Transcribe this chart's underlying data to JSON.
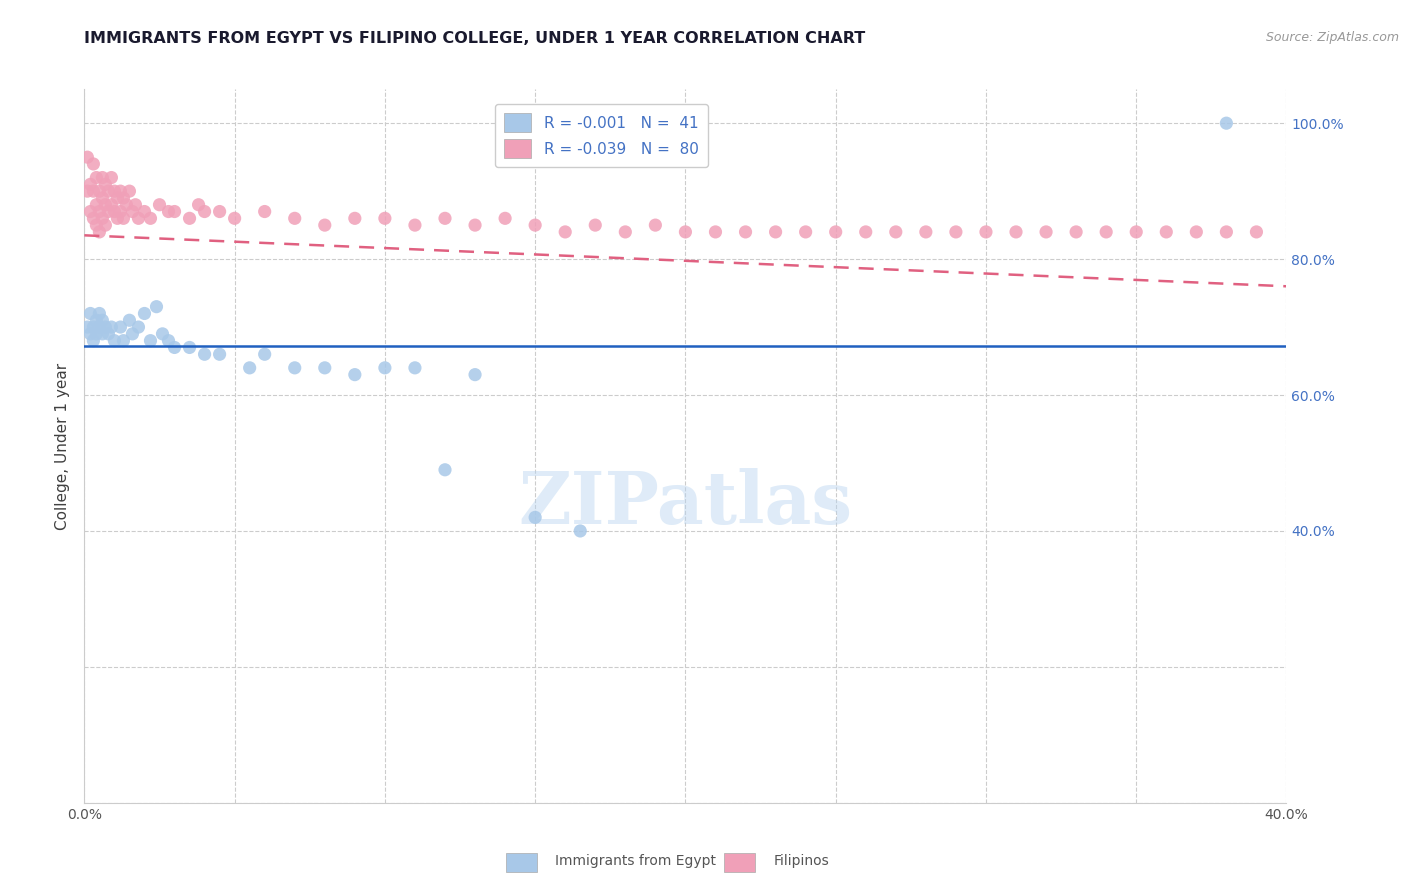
{
  "title": "IMMIGRANTS FROM EGYPT VS FILIPINO COLLEGE, UNDER 1 YEAR CORRELATION CHART",
  "source": "Source: ZipAtlas.com",
  "ylabel": "College, Under 1 year",
  "xlim": [
    0.0,
    0.4
  ],
  "ylim": [
    0.0,
    1.05
  ],
  "x_ticks": [
    0.0,
    0.05,
    0.1,
    0.15,
    0.2,
    0.25,
    0.3,
    0.35,
    0.4
  ],
  "x_tick_labels": [
    "0.0%",
    "",
    "",
    "",
    "",
    "",
    "",
    "",
    "40.0%"
  ],
  "y_ticks_right": [
    0.4,
    0.6,
    0.8,
    1.0
  ],
  "y_tick_labels_right": [
    "40.0%",
    "60.0%",
    "80.0%",
    "100.0%"
  ],
  "color_egypt": "#a8c8e8",
  "color_filipino": "#f0a0b8",
  "line_color_egypt": "#2060c0",
  "line_color_filipino": "#e06080",
  "watermark": "ZIPatlas",
  "egypt_x": [
    0.001,
    0.002,
    0.002,
    0.003,
    0.003,
    0.004,
    0.004,
    0.005,
    0.005,
    0.006,
    0.006,
    0.007,
    0.008,
    0.009,
    0.01,
    0.012,
    0.013,
    0.015,
    0.016,
    0.018,
    0.02,
    0.022,
    0.024,
    0.026,
    0.028,
    0.03,
    0.035,
    0.04,
    0.045,
    0.055,
    0.06,
    0.07,
    0.08,
    0.09,
    0.1,
    0.11,
    0.12,
    0.13,
    0.15,
    0.165,
    0.38
  ],
  "egypt_y": [
    0.7,
    0.72,
    0.69,
    0.7,
    0.68,
    0.71,
    0.69,
    0.7,
    0.72,
    0.69,
    0.71,
    0.7,
    0.69,
    0.7,
    0.68,
    0.7,
    0.68,
    0.71,
    0.69,
    0.7,
    0.72,
    0.68,
    0.73,
    0.69,
    0.68,
    0.67,
    0.67,
    0.66,
    0.66,
    0.64,
    0.66,
    0.64,
    0.64,
    0.63,
    0.64,
    0.64,
    0.49,
    0.63,
    0.42,
    0.4,
    1.0
  ],
  "filipino_x": [
    0.001,
    0.001,
    0.002,
    0.002,
    0.003,
    0.003,
    0.003,
    0.004,
    0.004,
    0.004,
    0.005,
    0.005,
    0.005,
    0.006,
    0.006,
    0.006,
    0.007,
    0.007,
    0.007,
    0.008,
    0.008,
    0.009,
    0.009,
    0.01,
    0.01,
    0.011,
    0.011,
    0.012,
    0.012,
    0.013,
    0.013,
    0.014,
    0.015,
    0.016,
    0.017,
    0.018,
    0.02,
    0.022,
    0.025,
    0.028,
    0.03,
    0.035,
    0.038,
    0.04,
    0.045,
    0.05,
    0.06,
    0.07,
    0.08,
    0.09,
    0.1,
    0.11,
    0.12,
    0.13,
    0.14,
    0.15,
    0.16,
    0.17,
    0.18,
    0.19,
    0.2,
    0.21,
    0.22,
    0.23,
    0.24,
    0.25,
    0.26,
    0.27,
    0.28,
    0.29,
    0.3,
    0.31,
    0.32,
    0.33,
    0.34,
    0.35,
    0.36,
    0.37,
    0.38,
    0.39
  ],
  "filipino_y": [
    0.95,
    0.9,
    0.91,
    0.87,
    0.94,
    0.9,
    0.86,
    0.92,
    0.88,
    0.85,
    0.9,
    0.87,
    0.84,
    0.92,
    0.89,
    0.86,
    0.91,
    0.88,
    0.85,
    0.9,
    0.87,
    0.92,
    0.88,
    0.9,
    0.87,
    0.89,
    0.86,
    0.9,
    0.87,
    0.89,
    0.86,
    0.88,
    0.9,
    0.87,
    0.88,
    0.86,
    0.87,
    0.86,
    0.88,
    0.87,
    0.87,
    0.86,
    0.88,
    0.87,
    0.87,
    0.86,
    0.87,
    0.86,
    0.85,
    0.86,
    0.86,
    0.85,
    0.86,
    0.85,
    0.86,
    0.85,
    0.84,
    0.85,
    0.84,
    0.85,
    0.84,
    0.84,
    0.84,
    0.84,
    0.84,
    0.84,
    0.84,
    0.84,
    0.84,
    0.84,
    0.84,
    0.84,
    0.84,
    0.84,
    0.84,
    0.84,
    0.84,
    0.84,
    0.84,
    0.84
  ],
  "egypt_line_x": [
    0.0,
    0.4
  ],
  "egypt_line_y": [
    0.672,
    0.672
  ],
  "filipino_line_x0": 0.0,
  "filipino_line_x1": 0.4,
  "filipino_line_y0": 0.835,
  "filipino_line_y1": 0.76,
  "legend1_text": "R = -0.001   N =  41",
  "legend2_text": "R = -0.039   N =  80",
  "bottom_label1": "Immigrants from Egypt",
  "bottom_label2": "Filipinos"
}
